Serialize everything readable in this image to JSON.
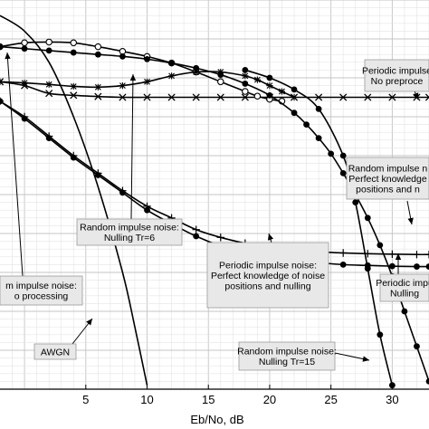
{
  "chart_data": {
    "type": "line",
    "xlabel": "Eb/No, dB",
    "xlim": [
      -2,
      33
    ],
    "ylim": [
      0,
      1
    ],
    "x_ticks": [
      "5",
      "10",
      "15",
      "20",
      "25",
      "30"
    ],
    "grid": true,
    "series": [
      {
        "marker": "none",
        "x": [
          -2,
          0,
          2,
          4,
          6,
          8,
          9,
          10
        ],
        "y": [
          0.96,
          0.92,
          0.84,
          0.7,
          0.52,
          0.3,
          0.16,
          0.01
        ]
      },
      {
        "marker": "x",
        "x": [
          -2,
          0,
          2,
          4,
          6,
          8,
          10,
          12,
          14,
          16,
          18,
          20,
          22,
          24,
          26,
          28,
          30,
          32,
          33
        ],
        "y": [
          0.79,
          0.78,
          0.76,
          0.755,
          0.752,
          0.75,
          0.75,
          0.75,
          0.75,
          0.75,
          0.75,
          0.75,
          0.75,
          0.75,
          0.75,
          0.75,
          0.75,
          0.75,
          0.75
        ]
      },
      {
        "marker": "circle-open",
        "x": [
          -2,
          0,
          2,
          4,
          6,
          8,
          10,
          12,
          14,
          16,
          18,
          19,
          20,
          21
        ],
        "y": [
          0.88,
          0.89,
          0.892,
          0.89,
          0.88,
          0.868,
          0.855,
          0.838,
          0.815,
          0.79,
          0.765,
          0.753,
          0.745,
          0.74
        ]
      },
      {
        "marker": "circle",
        "x": [
          -2,
          0,
          2,
          4,
          6,
          8,
          10,
          12,
          14,
          16,
          18,
          20,
          22,
          23,
          24,
          25,
          26,
          27,
          28,
          29,
          30,
          31,
          32,
          33
        ],
        "y": [
          0.88,
          0.875,
          0.87,
          0.865,
          0.86,
          0.855,
          0.848,
          0.838,
          0.825,
          0.808,
          0.785,
          0.755,
          0.71,
          0.68,
          0.645,
          0.605,
          0.555,
          0.5,
          0.44,
          0.37,
          0.29,
          0.2,
          0.11,
          0.02
        ]
      },
      {
        "marker": "star",
        "x": [
          -2,
          0,
          2,
          4,
          6,
          8,
          10,
          12,
          14,
          16,
          18,
          19,
          20,
          21,
          22
        ],
        "y": [
          0.79,
          0.787,
          0.783,
          0.778,
          0.776,
          0.78,
          0.79,
          0.805,
          0.815,
          0.815,
          0.805,
          0.795,
          0.78,
          0.765,
          0.75
        ]
      },
      {
        "marker": "plus",
        "x": [
          -2,
          0,
          2,
          4,
          6,
          8,
          10,
          12,
          14,
          16,
          18,
          20,
          22,
          24,
          26,
          28,
          30,
          32,
          33
        ],
        "y": [
          0.74,
          0.7,
          0.65,
          0.6,
          0.555,
          0.51,
          0.47,
          0.44,
          0.41,
          0.39,
          0.375,
          0.365,
          0.358,
          0.353,
          0.35,
          0.348,
          0.347,
          0.346,
          0.346
        ]
      },
      {
        "marker": "circle",
        "x": [
          -2,
          0,
          2,
          4,
          6,
          8,
          10,
          12,
          14,
          16,
          18,
          20,
          22,
          24,
          26,
          28,
          30,
          32,
          33
        ],
        "y": [
          0.74,
          0.695,
          0.645,
          0.595,
          0.55,
          0.505,
          0.46,
          0.425,
          0.393,
          0.368,
          0.35,
          0.338,
          0.33,
          0.325,
          0.32,
          0.318,
          0.316,
          0.315,
          0.315
        ]
      },
      {
        "marker": "circle",
        "x": [
          18,
          20,
          22,
          24,
          26,
          27,
          28,
          29,
          30
        ],
        "y": [
          0.82,
          0.8,
          0.77,
          0.72,
          0.6,
          0.48,
          0.31,
          0.14,
          0.01
        ]
      }
    ],
    "annotations": [
      {
        "lines": [
          "Periodic impulse",
          "No preproce"
        ]
      },
      {
        "lines": [
          "Random impulse n",
          "Perfect knowledge",
          "positions and n"
        ]
      },
      {
        "lines": [
          "Random impulse noise:",
          "Nulling Tr=6"
        ]
      },
      {
        "lines": [
          "m impulse noise:",
          "o processing"
        ]
      },
      {
        "lines": [
          "Periodic impulse noise:",
          "Perfect knowledge of noise",
          "positions and nulling"
        ]
      },
      {
        "lines": [
          "Periodic impu",
          "Nulling"
        ]
      },
      {
        "lines": [
          "AWGN"
        ]
      },
      {
        "lines": [
          "Random impulse noise:",
          "Nulling Tr=15"
        ]
      }
    ]
  }
}
